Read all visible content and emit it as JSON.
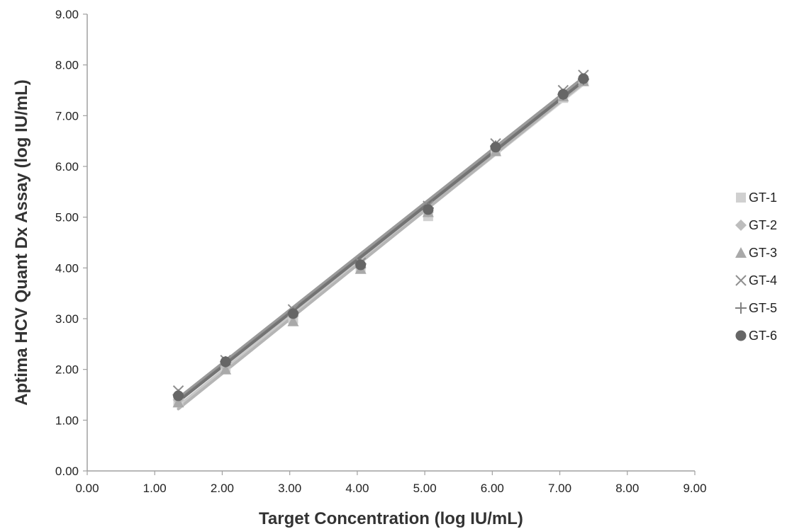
{
  "chart_data": {
    "type": "scatter",
    "xlabel": "Target Concentration (log IU/mL)",
    "ylabel": "Aptima HCV Quant Dx Assay (log IU/mL)",
    "xlim": [
      0,
      9
    ],
    "ylim": [
      0,
      9
    ],
    "x_ticks": [
      "0.00",
      "1.00",
      "2.00",
      "3.00",
      "4.00",
      "5.00",
      "6.00",
      "7.00",
      "8.00",
      "9.00"
    ],
    "y_ticks": [
      "0.00",
      "1.00",
      "2.00",
      "3.00",
      "4.00",
      "5.00",
      "6.00",
      "7.00",
      "8.00",
      "9.00"
    ],
    "legend_position": "right",
    "trendlines": true,
    "series": [
      {
        "name": "GT-1",
        "marker": "square",
        "color": "#d0d0d0",
        "line_color": "#d6d6d6",
        "points": [
          [
            1.35,
            1.35
          ],
          [
            2.05,
            2.05
          ],
          [
            3.05,
            3.0
          ],
          [
            4.05,
            4.0
          ],
          [
            5.05,
            5.02
          ],
          [
            6.05,
            6.3
          ],
          [
            7.05,
            7.35
          ],
          [
            7.35,
            7.68
          ]
        ]
      },
      {
        "name": "GT-2",
        "marker": "diamond",
        "color": "#bdbdbd",
        "line_color": "#c8c8c8",
        "points": [
          [
            1.35,
            1.4
          ],
          [
            2.05,
            2.05
          ],
          [
            3.05,
            3.05
          ],
          [
            4.05,
            4.0
          ],
          [
            5.05,
            5.1
          ],
          [
            6.05,
            6.35
          ],
          [
            7.05,
            7.4
          ],
          [
            7.35,
            7.7
          ]
        ]
      },
      {
        "name": "GT-3",
        "marker": "triangle",
        "color": "#a9a9a9",
        "line_color": "#b5b5b5",
        "points": [
          [
            1.35,
            1.35
          ],
          [
            2.05,
            2.0
          ],
          [
            3.05,
            2.95
          ],
          [
            4.05,
            3.98
          ],
          [
            5.05,
            5.1
          ],
          [
            6.05,
            6.3
          ],
          [
            7.05,
            7.38
          ],
          [
            7.35,
            7.68
          ]
        ]
      },
      {
        "name": "GT-4",
        "marker": "x",
        "color": "#8f8f8f",
        "line_color": "#9a9a9a",
        "points": [
          [
            1.35,
            1.58
          ],
          [
            2.05,
            2.18
          ],
          [
            3.05,
            3.18
          ],
          [
            4.05,
            4.1
          ],
          [
            5.05,
            5.22
          ],
          [
            6.05,
            6.45
          ],
          [
            7.05,
            7.5
          ],
          [
            7.35,
            7.8
          ]
        ]
      },
      {
        "name": "GT-5",
        "marker": "plus",
        "color": "#808080",
        "line_color": "#8a8a8a",
        "points": [
          [
            1.35,
            1.5
          ],
          [
            2.05,
            2.15
          ],
          [
            3.05,
            3.12
          ],
          [
            4.05,
            4.08
          ],
          [
            5.05,
            5.18
          ],
          [
            6.05,
            6.4
          ],
          [
            7.05,
            7.42
          ],
          [
            7.35,
            7.72
          ]
        ]
      },
      {
        "name": "GT-6",
        "marker": "circle",
        "color": "#666666",
        "line_color": "#737373",
        "points": [
          [
            1.35,
            1.48
          ],
          [
            2.05,
            2.15
          ],
          [
            3.05,
            3.1
          ],
          [
            4.05,
            4.06
          ],
          [
            5.05,
            5.15
          ],
          [
            6.05,
            6.38
          ],
          [
            7.05,
            7.42
          ],
          [
            7.35,
            7.73
          ]
        ]
      }
    ]
  }
}
